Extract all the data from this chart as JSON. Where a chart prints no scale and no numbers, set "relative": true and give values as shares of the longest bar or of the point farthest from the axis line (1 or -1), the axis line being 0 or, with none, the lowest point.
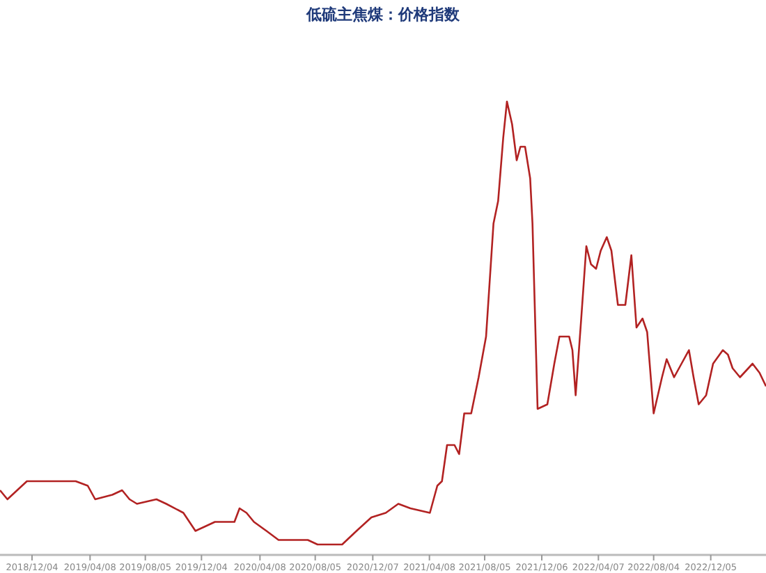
{
  "chart_data": {
    "type": "line",
    "title": "低硫主焦煤：价格指数",
    "relative": true,
    "marker": "none",
    "line_style": "solid",
    "xlim": [
      "2018-09-26",
      "2023-04-03"
    ],
    "xticks": [
      {
        "value": "2018-12-04",
        "label": "2018/12/04"
      },
      {
        "value": "2019-04-08",
        "label": "2019/04/08"
      },
      {
        "value": "2019-08-05",
        "label": "2019/08/05"
      },
      {
        "value": "2019-12-04",
        "label": "2019/12/04"
      },
      {
        "value": "2020-04-08",
        "label": "2020/04/08"
      },
      {
        "value": "2020-08-05",
        "label": "2020/08/05"
      },
      {
        "value": "2020-12-07",
        "label": "2020/12/07"
      },
      {
        "value": "2021-04-08",
        "label": "2021/04/08"
      },
      {
        "value": "2021-08-05",
        "label": "2021/08/05"
      },
      {
        "value": "2021-12-06",
        "label": "2021/12/06"
      },
      {
        "value": "2022-04-07",
        "label": "2022/04/07"
      },
      {
        "value": "2022-08-04",
        "label": "2022/08/04"
      },
      {
        "value": "2022-12-05",
        "label": "2022/12/05"
      }
    ],
    "x": [
      "2018-09-26",
      "2018-10-12",
      "2018-11-23",
      "2019-01-09",
      "2019-03-08",
      "2019-04-03",
      "2019-04-19",
      "2019-05-26",
      "2019-06-16",
      "2019-07-02",
      "2019-07-18",
      "2019-08-29",
      "2019-09-19",
      "2019-10-26",
      "2019-11-21",
      "2019-12-12",
      "2020-01-02",
      "2020-02-13",
      "2020-02-24",
      "2020-03-10",
      "2020-03-26",
      "2020-04-22",
      "2020-05-18",
      "2020-06-18",
      "2020-07-20",
      "2020-08-10",
      "2020-08-31",
      "2020-10-02",
      "2020-11-02",
      "2020-12-04",
      "2021-01-04",
      "2021-01-31",
      "2021-02-26",
      "2021-04-09",
      "2021-04-25",
      "2021-05-05",
      "2021-05-16",
      "2021-06-01",
      "2021-06-11",
      "2021-06-22",
      "2021-07-07",
      "2021-07-23",
      "2021-08-08",
      "2021-08-24",
      "2021-09-03",
      "2021-09-14",
      "2021-09-22",
      "2021-10-03",
      "2021-10-13",
      "2021-10-21",
      "2021-10-31",
      "2021-11-11",
      "2021-11-16",
      "2021-11-27",
      "2021-12-18",
      "2022-01-02",
      "2022-01-13",
      "2022-02-03",
      "2022-02-10",
      "2022-02-17",
      "2022-03-01",
      "2022-03-12",
      "2022-03-22",
      "2022-04-02",
      "2022-04-12",
      "2022-04-25",
      "2022-05-05",
      "2022-05-19",
      "2022-06-04",
      "2022-06-17",
      "2022-06-28",
      "2022-07-11",
      "2022-07-21",
      "2022-08-04",
      "2022-08-22",
      "2022-09-01",
      "2022-09-17",
      "2022-10-03",
      "2022-10-19",
      "2022-10-29",
      "2022-11-09",
      "2022-11-25",
      "2022-12-10",
      "2022-12-31",
      "2023-01-11",
      "2023-01-21",
      "2023-02-06",
      "2023-03-05",
      "2023-03-20",
      "2023-04-03"
    ],
    "series": [
      {
        "color": "#b22222",
        "values": [
          0.14,
          0.12,
          0.16,
          0.16,
          0.16,
          0.15,
          0.12,
          0.13,
          0.14,
          0.12,
          0.11,
          0.12,
          0.11,
          0.09,
          0.05,
          0.06,
          0.07,
          0.07,
          0.1,
          0.09,
          0.07,
          0.05,
          0.03,
          0.03,
          0.03,
          0.02,
          0.02,
          0.02,
          0.05,
          0.08,
          0.09,
          0.11,
          0.1,
          0.09,
          0.15,
          0.16,
          0.24,
          0.24,
          0.22,
          0.31,
          0.31,
          0.39,
          0.48,
          0.73,
          0.78,
          0.92,
          1,
          0.95,
          0.87,
          0.9,
          0.9,
          0.83,
          0.73,
          0.32,
          0.33,
          0.42,
          0.48,
          0.48,
          0.45,
          0.35,
          0.52,
          0.68,
          0.64,
          0.63,
          0.67,
          0.7,
          0.67,
          0.55,
          0.55,
          0.66,
          0.5,
          0.52,
          0.49,
          0.31,
          0.39,
          0.43,
          0.39,
          0.42,
          0.45,
          0.39,
          0.33,
          0.35,
          0.42,
          0.45,
          0.44,
          0.41,
          0.39,
          0.42,
          0.4,
          0.37
        ]
      }
    ]
  }
}
